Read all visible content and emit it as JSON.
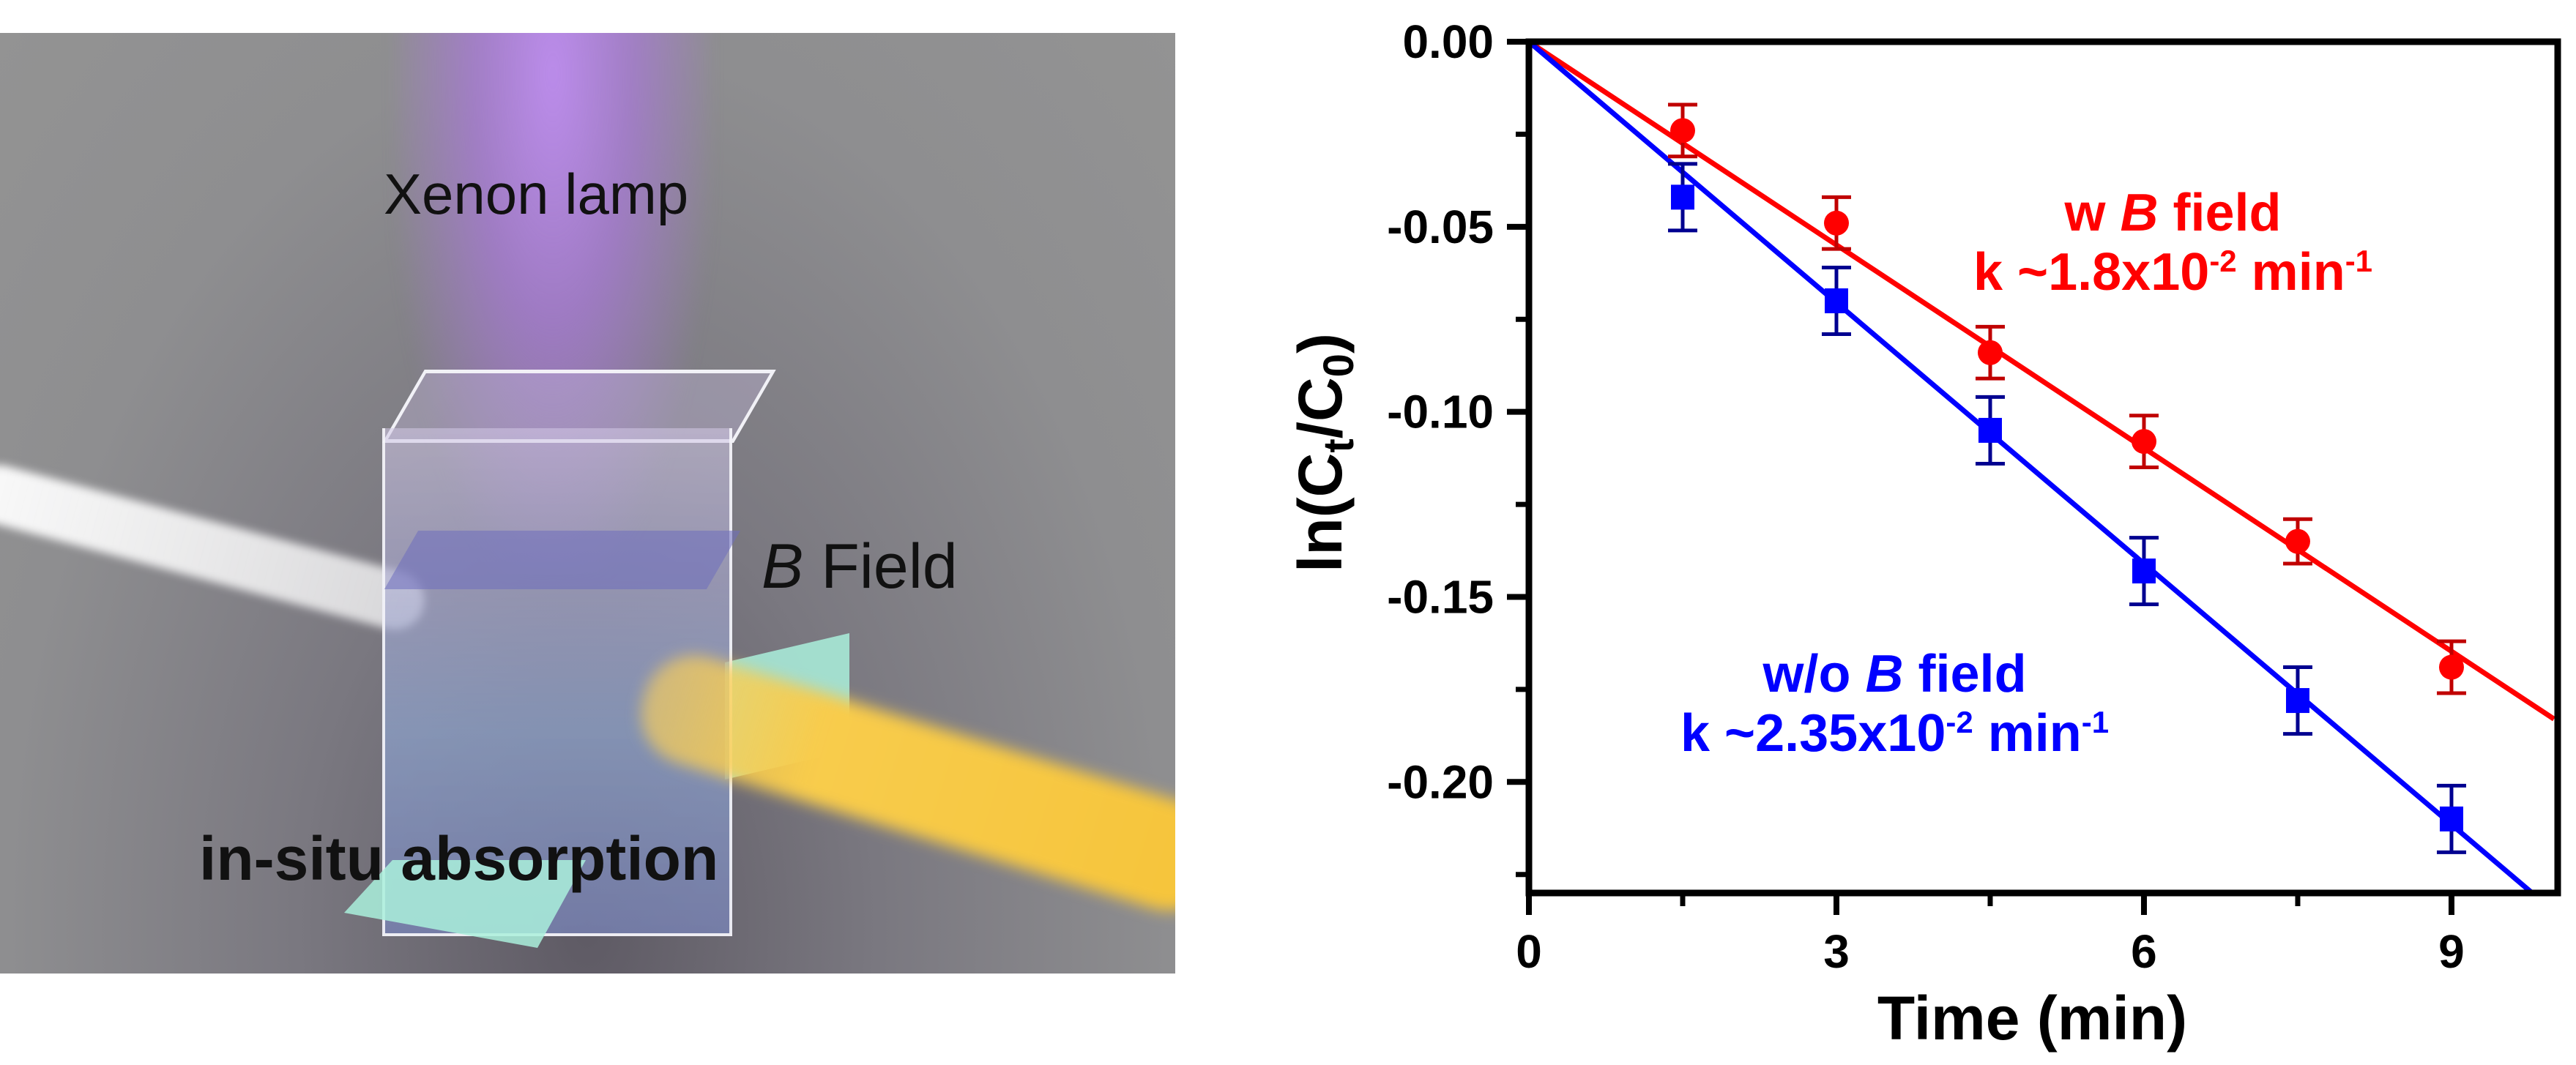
{
  "scene": {
    "labels": {
      "xenon": "Xenon lamp",
      "bfield_symbol": "B",
      "bfield_text": " Field",
      "insitu": "in-situ absorption"
    },
    "colors": {
      "background": "#939393",
      "lamp_glow": "#b98ce8",
      "probe_beam": "#f6c43a",
      "magnet_plate": "#aaf0dc"
    }
  },
  "chart_data": {
    "type": "scatter",
    "title": "",
    "xlabel": "Time (min)",
    "ylabel": "ln(Ct/C0)",
    "ylabel_parts": {
      "prefix": "ln(C",
      "sub1": "t",
      "mid": "/C",
      "sub2": "0",
      "suffix": ")"
    },
    "xlim": [
      0,
      10
    ],
    "ylim": [
      -0.23,
      0.0
    ],
    "xticks": [
      0,
      3,
      6,
      9
    ],
    "xticks_minor": [
      1.5,
      4.5,
      7.5
    ],
    "xtick_labels": [
      "0",
      "3",
      "6",
      "9"
    ],
    "yticks": [
      0.0,
      -0.05,
      -0.1,
      -0.15,
      -0.2
    ],
    "yticks_minor": [
      -0.025,
      -0.075,
      -0.125,
      -0.175,
      -0.225
    ],
    "ytick_labels": [
      "0.00",
      "-0.05",
      "-0.10",
      "-0.15",
      "-0.20"
    ],
    "grid": false,
    "series": [
      {
        "name": "w B field",
        "color": "#ff0000",
        "marker": "circle",
        "x": [
          1.5,
          3,
          4.5,
          6,
          7.5,
          9
        ],
        "y": [
          -0.024,
          -0.049,
          -0.084,
          -0.108,
          -0.135,
          -0.169
        ],
        "yerr": [
          0.007,
          0.007,
          0.007,
          0.007,
          0.006,
          0.007
        ],
        "fit": {
          "type": "linear",
          "intercept": 0.0,
          "slope": -0.0183
        },
        "annotation": {
          "line1_prefix": "w ",
          "line1_symbol": "B",
          "line1_suffix": " field",
          "k_text": "k ~1.8x10",
          "k_exp": "-2",
          "unit": " min",
          "unit_exp": "-1"
        }
      },
      {
        "name": "w/o B field",
        "color": "#0000ff",
        "marker": "square",
        "x": [
          1.5,
          3,
          4.5,
          6,
          7.5,
          9
        ],
        "y": [
          -0.042,
          -0.07,
          -0.105,
          -0.143,
          -0.178,
          -0.21
        ],
        "yerr": [
          0.009,
          0.009,
          0.009,
          0.009,
          0.009,
          0.009
        ],
        "fit": {
          "type": "linear",
          "intercept": 0.0,
          "slope": -0.0235
        },
        "annotation": {
          "line1_prefix": "w/o ",
          "line1_symbol": "B",
          "line1_suffix": " field",
          "k_text": "k ~2.35x10",
          "k_exp": "-2",
          "unit": " min",
          "unit_exp": "-1"
        }
      }
    ]
  }
}
